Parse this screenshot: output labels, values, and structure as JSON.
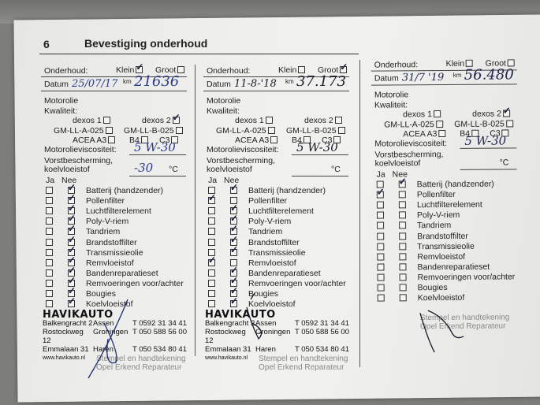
{
  "page": {
    "number": "6",
    "title": "Bevestiging onderhoud"
  },
  "labels": {
    "onderhoud": "Onderhoud:",
    "klein": "Klein",
    "groot": "Groot",
    "datum": "Datum",
    "km": "km",
    "motorolie": "Motorolie",
    "kwaliteit": "Kwaliteit:",
    "dexos1": "dexos 1",
    "dexos2": "dexos 2",
    "gma": "GM-LL-A-025",
    "gmb": "GM-LL-B-025",
    "acea": "ACEA A3",
    "b4": "B4",
    "c3": "C3",
    "viscositeit": "Motorolieviscositeit:",
    "vorst1": "Vorstbescherming,",
    "vorst2": "koelvloeistof",
    "celsius": "°C",
    "ja": "Ja",
    "nee": "Nee",
    "stamp_label_1": "Stempel en handtekening",
    "stamp_label_2": "Opel Erkend Reparateur"
  },
  "checklist_items": [
    "Batterij (handzender)",
    "Pollenfilter",
    "Luchtfilterelement",
    "Poly-V-riem",
    "Tandriem",
    "Brandstoffilter",
    "Transmissieolie",
    "Remvloeistof",
    "Bandenreparatieset",
    "Remvoeringen voor/achter",
    "Bougies",
    "Koelvloeistof"
  ],
  "entries": [
    {
      "klein": true,
      "groot": false,
      "date": "25/07/17",
      "km": "21636",
      "dexos1": false,
      "dexos2": true,
      "gma": false,
      "gmb": false,
      "acea": false,
      "b4": false,
      "c3": false,
      "viscosity": "5 W-30",
      "frost": "-30",
      "ink": "#2b3a8c",
      "ja": [
        false,
        false,
        false,
        false,
        false,
        false,
        false,
        false,
        false,
        false,
        false,
        false
      ],
      "nee": [
        true,
        true,
        true,
        true,
        true,
        true,
        true,
        true,
        true,
        true,
        true,
        true
      ]
    },
    {
      "klein": false,
      "groot": true,
      "date": "11-8-'18",
      "km": "37.173",
      "dexos1": false,
      "dexos2": false,
      "gma": false,
      "gmb": false,
      "acea": false,
      "b4": false,
      "c3": false,
      "viscosity": "5 W-30",
      "frost": "",
      "ink": "#1c1c2a",
      "ja": [
        false,
        true,
        false,
        false,
        false,
        false,
        false,
        true,
        false,
        false,
        false,
        false
      ],
      "nee": [
        true,
        false,
        true,
        true,
        true,
        true,
        true,
        false,
        true,
        true,
        true,
        true
      ]
    },
    {
      "klein": false,
      "groot": false,
      "date": "31/7 '19",
      "km": "56.480",
      "dexos1": false,
      "dexos2": true,
      "gma": false,
      "gmb": false,
      "acea": false,
      "b4": false,
      "c3": false,
      "viscosity": "5 W-30",
      "frost": "",
      "ink": "#1f2450",
      "ja": [
        false,
        true,
        false,
        false,
        false,
        false,
        false,
        false,
        false,
        false,
        false,
        false
      ],
      "nee": [
        true,
        false,
        false,
        false,
        false,
        false,
        false,
        false,
        false,
        false,
        false,
        false
      ]
    }
  ],
  "stamps": [
    {
      "company": "HAVIKAUTO",
      "rows": [
        [
          "Balkengracht 2",
          "Assen",
          "T 0592 31 34 41"
        ],
        [
          "Rostockweg 12",
          "Groningen",
          "T 050 588 56 00"
        ],
        [
          "Emmalaan 31",
          "Haren",
          "T 050 534 80 41"
        ]
      ],
      "url": "www.havikauto.nl"
    },
    {
      "company": "HAVIKAUTO",
      "rows": [
        [
          "Balkengracht 2",
          "Assen",
          "T 0592 31 34 41"
        ],
        [
          "Rostockweg 12",
          "Groningen",
          "T 050 588 56 00"
        ],
        [
          "Emmalaan 31",
          "Haren",
          "T 050 534 80 41"
        ]
      ],
      "url": "www.havikauto.nl"
    }
  ],
  "colors": {
    "paper": "#eeeeec",
    "ink_blue": "#2b3a8c",
    "print": "#222222"
  }
}
